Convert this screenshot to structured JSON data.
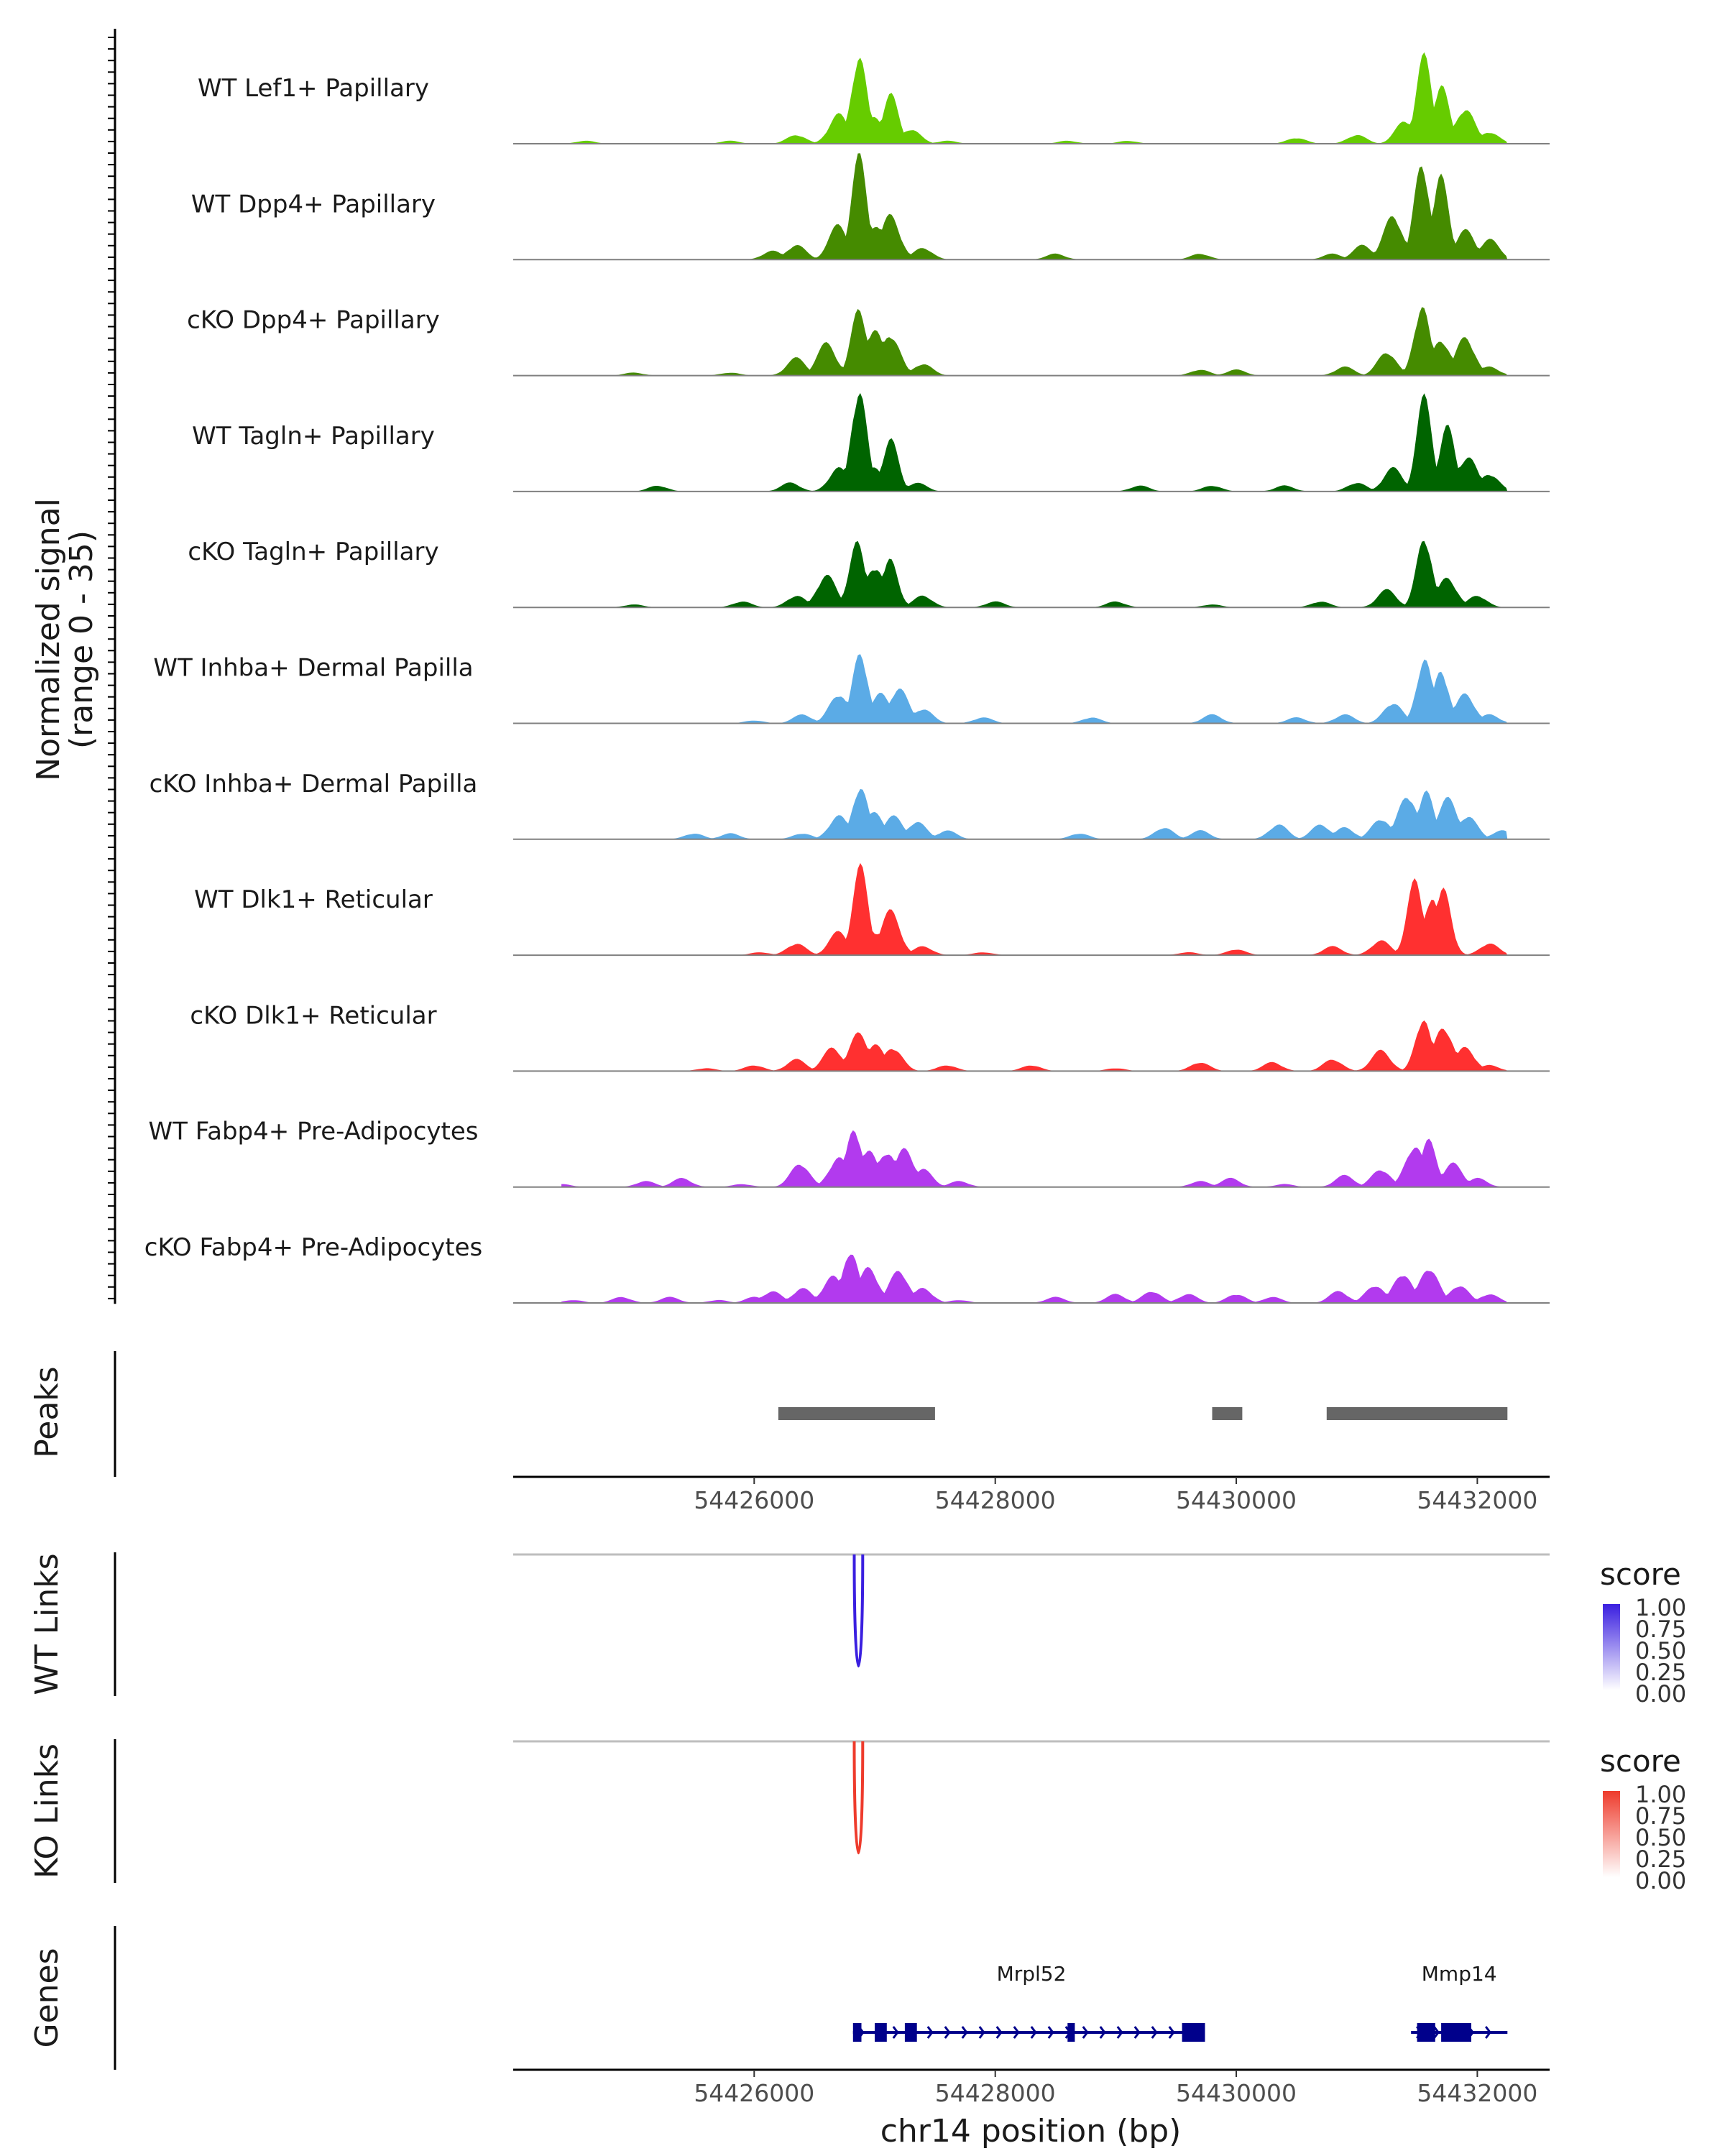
{
  "chart_data": {
    "type": "area",
    "title": "",
    "region": {
      "chrom": "chr14",
      "start": 54424000,
      "end": 54432600
    },
    "y_axis_label": {
      "line1": "Normalized signal",
      "line2": "(range 0 - 35)"
    },
    "ylim": [
      0,
      35
    ],
    "x_ticks": [
      54426000,
      54428000,
      54430000,
      54432000
    ],
    "x_tick_labels": [
      "54426000",
      "54428000",
      "54430000",
      "54432000"
    ],
    "xlabel": "chr14 position (bp)",
    "tracks": [
      {
        "name": "WT Lef1+ Papillary",
        "color": "#66CC00",
        "peaks": [
          [
            54424600,
            1
          ],
          [
            54425800,
            1
          ],
          [
            54426350,
            3
          ],
          [
            54426700,
            10
          ],
          [
            54426870,
            30
          ],
          [
            54427000,
            9
          ],
          [
            54427130,
            17
          ],
          [
            54427300,
            5
          ],
          [
            54427600,
            1
          ],
          [
            54428600,
            1
          ],
          [
            54429100,
            1
          ],
          [
            54430500,
            2
          ],
          [
            54431000,
            3
          ],
          [
            54431400,
            8
          ],
          [
            54431560,
            30
          ],
          [
            54431700,
            20
          ],
          [
            54431900,
            12
          ],
          [
            54432100,
            4
          ]
        ]
      },
      {
        "name": "WT Dpp4+ Papillary",
        "color": "#458B00",
        "peaks": [
          [
            54426150,
            3
          ],
          [
            54426350,
            5
          ],
          [
            54426700,
            12
          ],
          [
            54426870,
            35
          ],
          [
            54427000,
            12
          ],
          [
            54427130,
            15
          ],
          [
            54427400,
            4
          ],
          [
            54428500,
            2
          ],
          [
            54429700,
            2
          ],
          [
            54430800,
            2
          ],
          [
            54431050,
            5
          ],
          [
            54431300,
            15
          ],
          [
            54431540,
            33
          ],
          [
            54431700,
            28
          ],
          [
            54431900,
            10
          ],
          [
            54432100,
            7
          ]
        ]
      },
      {
        "name": "cKO Dpp4+ Papillary",
        "color": "#458B00",
        "peaks": [
          [
            54425000,
            1
          ],
          [
            54425800,
            1
          ],
          [
            54426350,
            6
          ],
          [
            54426600,
            11
          ],
          [
            54426870,
            23
          ],
          [
            54427000,
            15
          ],
          [
            54427130,
            14
          ],
          [
            54427400,
            4
          ],
          [
            54429700,
            2
          ],
          [
            54430000,
            2
          ],
          [
            54430900,
            3
          ],
          [
            54431250,
            8
          ],
          [
            54431540,
            24
          ],
          [
            54431700,
            12
          ],
          [
            54431900,
            13
          ],
          [
            54432100,
            3
          ]
        ]
      },
      {
        "name": "WT Tagln+ Papillary",
        "color": "#006400",
        "peaks": [
          [
            54425200,
            2
          ],
          [
            54426300,
            3
          ],
          [
            54426700,
            8
          ],
          [
            54426870,
            35
          ],
          [
            54427000,
            8
          ],
          [
            54427130,
            18
          ],
          [
            54427350,
            3
          ],
          [
            54429200,
            2
          ],
          [
            54429800,
            2
          ],
          [
            54430400,
            2
          ],
          [
            54431000,
            3
          ],
          [
            54431300,
            8
          ],
          [
            54431560,
            32
          ],
          [
            54431750,
            22
          ],
          [
            54431920,
            12
          ],
          [
            54432100,
            6
          ]
        ]
      },
      {
        "name": "cKO Tagln+ Papillary",
        "color": "#006400",
        "peaks": [
          [
            54425000,
            1
          ],
          [
            54425900,
            2
          ],
          [
            54426350,
            4
          ],
          [
            54426600,
            11
          ],
          [
            54426850,
            22
          ],
          [
            54427000,
            14
          ],
          [
            54427130,
            16
          ],
          [
            54427400,
            4
          ],
          [
            54428000,
            2
          ],
          [
            54429000,
            2
          ],
          [
            54429800,
            1
          ],
          [
            54430700,
            2
          ],
          [
            54431250,
            6
          ],
          [
            54431560,
            24
          ],
          [
            54431750,
            10
          ],
          [
            54432000,
            4
          ]
        ]
      },
      {
        "name": "WT Inhba+ Dermal Papilla",
        "color": "#5BABE6",
        "peaks": [
          [
            54426000,
            1
          ],
          [
            54426400,
            3
          ],
          [
            54426700,
            10
          ],
          [
            54426880,
            24
          ],
          [
            54427050,
            10
          ],
          [
            54427200,
            12
          ],
          [
            54427400,
            5
          ],
          [
            54427900,
            2
          ],
          [
            54428800,
            2
          ],
          [
            54429800,
            3
          ],
          [
            54430500,
            2
          ],
          [
            54430900,
            3
          ],
          [
            54431300,
            7
          ],
          [
            54431560,
            22
          ],
          [
            54431700,
            18
          ],
          [
            54431900,
            10
          ],
          [
            54432100,
            3
          ]
        ]
      },
      {
        "name": "cKO Inhba+ Dermal Papilla",
        "color": "#5BABE6",
        "peaks": [
          [
            54425500,
            2
          ],
          [
            54425800,
            2
          ],
          [
            54426400,
            2
          ],
          [
            54426700,
            8
          ],
          [
            54426880,
            18
          ],
          [
            54427000,
            9
          ],
          [
            54427150,
            8
          ],
          [
            54427350,
            6
          ],
          [
            54427600,
            3
          ],
          [
            54428700,
            2
          ],
          [
            54429400,
            4
          ],
          [
            54429700,
            3
          ],
          [
            54430350,
            5
          ],
          [
            54430700,
            5
          ],
          [
            54430900,
            4
          ],
          [
            54431200,
            7
          ],
          [
            54431420,
            15
          ],
          [
            54431580,
            16
          ],
          [
            54431750,
            14
          ],
          [
            54431920,
            8
          ],
          [
            54432200,
            3
          ]
        ]
      },
      {
        "name": "WT Dlk1+ Reticular",
        "color": "#FF3030",
        "peaks": [
          [
            54426050,
            1
          ],
          [
            54426350,
            4
          ],
          [
            54426700,
            8
          ],
          [
            54426880,
            30
          ],
          [
            54427000,
            8
          ],
          [
            54427130,
            15
          ],
          [
            54427400,
            3
          ],
          [
            54427900,
            1
          ],
          [
            54429600,
            1
          ],
          [
            54430000,
            2
          ],
          [
            54430800,
            3
          ],
          [
            54431200,
            5
          ],
          [
            54431480,
            25
          ],
          [
            54431620,
            20
          ],
          [
            54431720,
            22
          ],
          [
            54432100,
            4
          ]
        ]
      },
      {
        "name": "cKO Dlk1+ Reticular",
        "color": "#FF3030",
        "peaks": [
          [
            54425600,
            1
          ],
          [
            54426000,
            2
          ],
          [
            54426350,
            4
          ],
          [
            54426650,
            8
          ],
          [
            54426870,
            13
          ],
          [
            54427000,
            9
          ],
          [
            54427150,
            8
          ],
          [
            54427600,
            2
          ],
          [
            54428300,
            2
          ],
          [
            54429000,
            1
          ],
          [
            54429700,
            3
          ],
          [
            54430300,
            3
          ],
          [
            54430800,
            4
          ],
          [
            54431200,
            7
          ],
          [
            54431550,
            18
          ],
          [
            54431720,
            15
          ],
          [
            54431900,
            8
          ],
          [
            54432100,
            2
          ]
        ]
      },
      {
        "name": "WT Fabp4+ Pre-Adipocytes",
        "color": "#B23AEE",
        "peaks": [
          [
            54424400,
            1
          ],
          [
            54425100,
            2
          ],
          [
            54425400,
            3
          ],
          [
            54425900,
            1
          ],
          [
            54426380,
            8
          ],
          [
            54426700,
            10
          ],
          [
            54426830,
            20
          ],
          [
            54426950,
            12
          ],
          [
            54427100,
            12
          ],
          [
            54427250,
            13
          ],
          [
            54427400,
            6
          ],
          [
            54427700,
            2
          ],
          [
            54429700,
            2
          ],
          [
            54429950,
            3
          ],
          [
            54430400,
            1
          ],
          [
            54430900,
            4
          ],
          [
            54431200,
            6
          ],
          [
            54431480,
            14
          ],
          [
            54431600,
            16
          ],
          [
            54431800,
            8
          ],
          [
            54432000,
            3
          ]
        ]
      },
      {
        "name": "cKO Fabp4+ Pre-Adipocytes",
        "color": "#B23AEE",
        "peaks": [
          [
            54424500,
            1
          ],
          [
            54424900,
            2
          ],
          [
            54425300,
            2
          ],
          [
            54425700,
            1
          ],
          [
            54426000,
            2
          ],
          [
            54426150,
            4
          ],
          [
            54426400,
            5
          ],
          [
            54426650,
            9
          ],
          [
            54426800,
            18
          ],
          [
            54426950,
            12
          ],
          [
            54427200,
            11
          ],
          [
            54427400,
            5
          ],
          [
            54427700,
            1
          ],
          [
            54428500,
            2
          ],
          [
            54429000,
            3
          ],
          [
            54429300,
            4
          ],
          [
            54429600,
            3
          ],
          [
            54430000,
            3
          ],
          [
            54430300,
            2
          ],
          [
            54430850,
            4
          ],
          [
            54431150,
            6
          ],
          [
            54431380,
            10
          ],
          [
            54431600,
            12
          ],
          [
            54431850,
            6
          ],
          [
            54432100,
            3
          ]
        ]
      }
    ],
    "peaks_track": {
      "label": "Peaks",
      "intervals": [
        [
          54426200,
          54427500
        ],
        [
          54429800,
          54430050
        ],
        [
          54430750,
          54432250
        ]
      ]
    },
    "wt_links": {
      "label": "WT Links",
      "color": "#3A1FE0",
      "legend_title": "score",
      "legend_ticks": [
        "1.00",
        "0.75",
        "0.50",
        "0.25",
        "0.00"
      ],
      "links": [
        {
          "start": 54426830,
          "end": 54426900,
          "score": 1.0
        }
      ]
    },
    "ko_links": {
      "label": "KO Links",
      "color": "#EE3B2C",
      "legend_title": "score",
      "legend_ticks": [
        "1.00",
        "0.75",
        "0.50",
        "0.25",
        "0.00"
      ],
      "links": [
        {
          "start": 54426830,
          "end": 54426900,
          "score": 1.0
        }
      ]
    },
    "genes_track": {
      "label": "Genes",
      "genes": [
        {
          "name": "Mrpl52",
          "start": 54426820,
          "end": 54429740,
          "strand": "+",
          "exons": [
            [
              54426820,
              54426890
            ],
            [
              54427000,
              54427100
            ],
            [
              54427250,
              54427350
            ],
            [
              54428600,
              54428660
            ],
            [
              54429550,
              54429740
            ]
          ]
        },
        {
          "name": "Mmp14",
          "start": 54431450,
          "end": 54432250,
          "strand": "+",
          "exons": [
            [
              54431500,
              54431650
            ],
            [
              54431700,
              54431950
            ]
          ]
        }
      ]
    }
  }
}
